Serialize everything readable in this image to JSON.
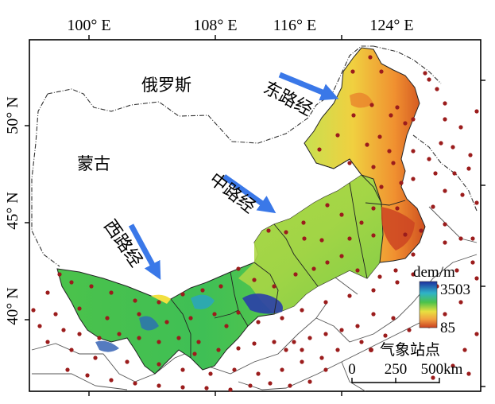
{
  "axes": {
    "top_ticks": [
      {
        "deg": "100°",
        "hem": "E"
      },
      {
        "deg": "108°",
        "hem": "E"
      },
      {
        "deg": "116°",
        "hem": "E"
      },
      {
        "deg": "124°",
        "hem": "E"
      }
    ],
    "left_ticks": [
      {
        "deg": "50°",
        "hem": "N"
      },
      {
        "deg": "45°",
        "hem": "N"
      },
      {
        "deg": "40°",
        "hem": "N"
      }
    ]
  },
  "labels": {
    "russia": "俄罗斯",
    "mongolia": "蒙古",
    "route_east": "东路经",
    "route_middle": "中路经",
    "route_west": "西路经"
  },
  "legend": {
    "title": "dem/m",
    "max": "3503",
    "min": "85",
    "station_label": "气象站点"
  },
  "scale_bar": {
    "labels": [
      "0",
      "250",
      "500km"
    ]
  },
  "colors": {
    "arrow": "#3a78e8",
    "station": "#9b1c1c",
    "elev_high": "#1d2fa0",
    "elev_mid": "#4bc24b",
    "elev_low": "#c8401f"
  }
}
